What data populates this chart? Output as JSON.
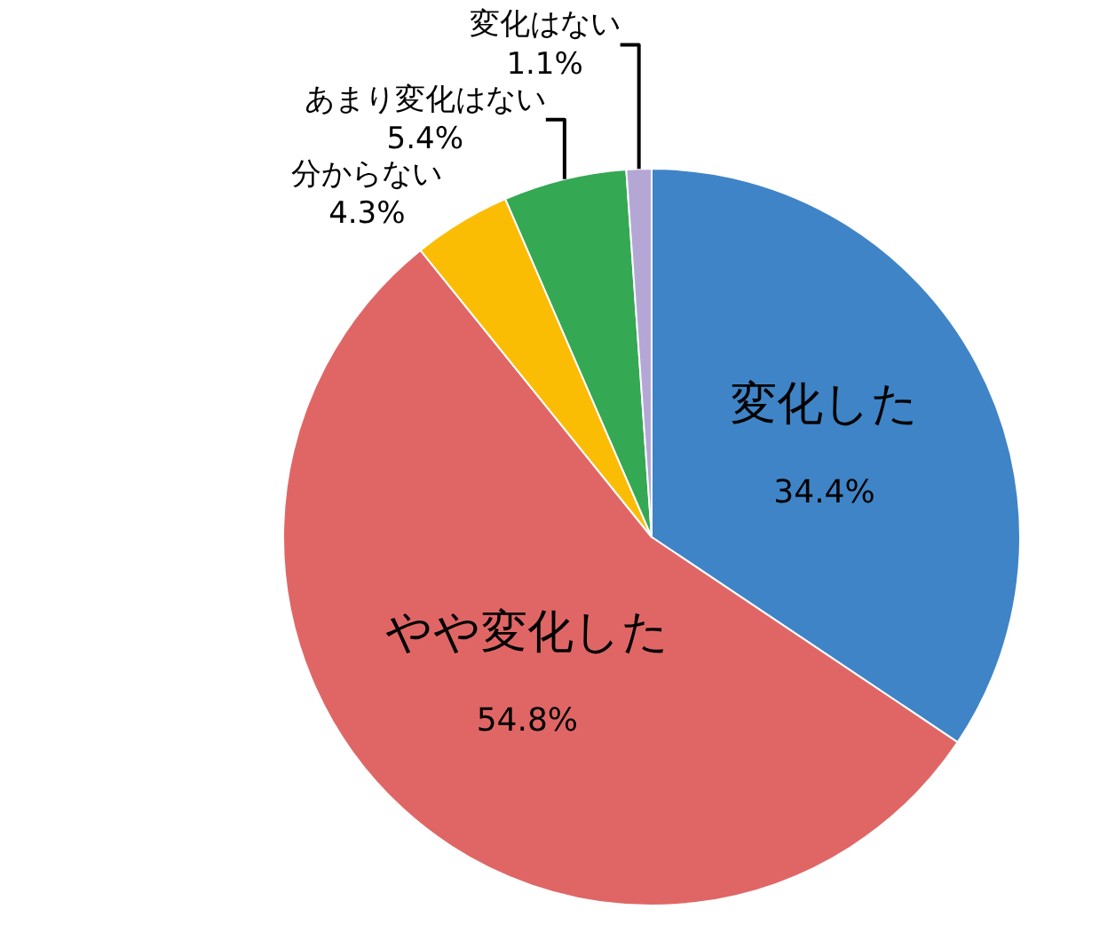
{
  "chart_data": {
    "type": "pie",
    "categories": [
      "変化した",
      "やや変化した",
      "分からない",
      "あまり変化はない",
      "変化はない"
    ],
    "values": [
      34.4,
      54.8,
      4.3,
      5.4,
      1.1
    ],
    "value_labels": [
      "34.4%",
      "54.8%",
      "4.3%",
      "5.4%",
      "1.1%"
    ],
    "colors": [
      "#3f84c6",
      "#e06666",
      "#fbbc04",
      "#34a853",
      "#b4a7d6"
    ],
    "legend": false
  }
}
